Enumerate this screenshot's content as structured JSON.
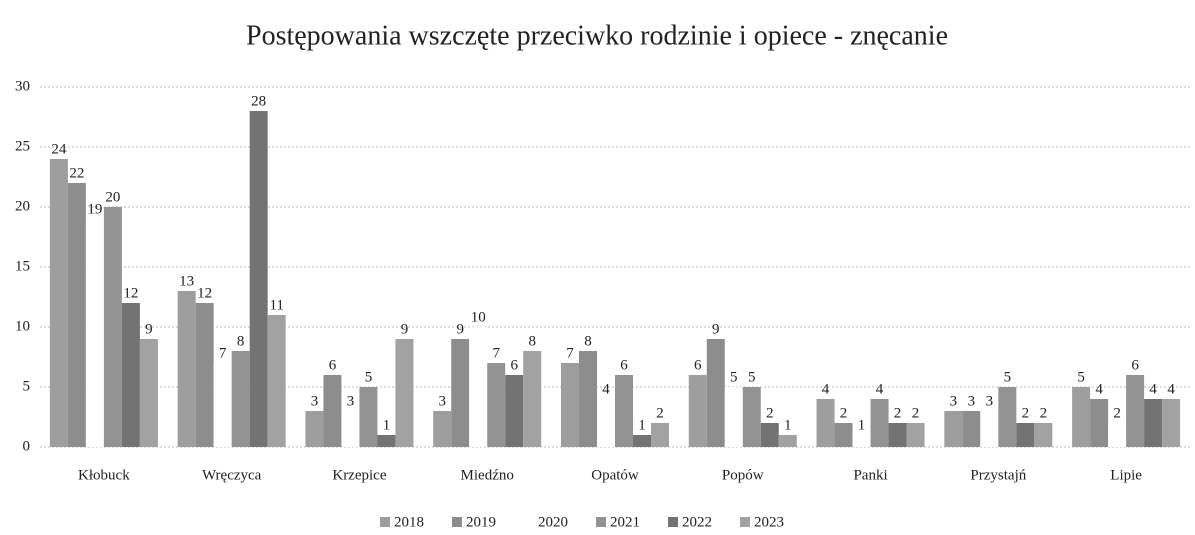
{
  "chart_data": {
    "type": "bar",
    "title": "Postępowania wszczęte przeciwko rodzinie i opiece - znęcanie",
    "categories": [
      "Kłobuck",
      "Wręczyca",
      "Krzepice",
      "Miedźno",
      "Opatów",
      "Popów",
      "Panki",
      "Przystajń",
      "Lipie"
    ],
    "series": [
      {
        "name": "2018",
        "color": "#9e9e9e",
        "values": [
          24,
          13,
          3,
          3,
          7,
          6,
          4,
          3,
          5
        ]
      },
      {
        "name": "2019",
        "color": "#8d8d8d",
        "values": [
          22,
          12,
          6,
          9,
          8,
          9,
          2,
          3,
          4
        ]
      },
      {
        "name": "2020",
        "color": "#ffffff",
        "values": [
          19,
          7,
          3,
          10,
          4,
          5,
          1,
          3,
          2
        ]
      },
      {
        "name": "2021",
        "color": "#939393",
        "values": [
          20,
          8,
          5,
          7,
          6,
          5,
          4,
          5,
          6
        ]
      },
      {
        "name": "2022",
        "color": "#737373",
        "values": [
          12,
          28,
          1,
          6,
          1,
          2,
          2,
          2,
          4
        ]
      },
      {
        "name": "2023",
        "color": "#a2a2a2",
        "values": [
          9,
          11,
          9,
          8,
          2,
          1,
          2,
          2,
          4
        ]
      }
    ],
    "ylim": [
      0,
      30
    ],
    "yticks": [
      0,
      5,
      10,
      15,
      20,
      25,
      30
    ],
    "grid": true,
    "legend": "bottom"
  }
}
